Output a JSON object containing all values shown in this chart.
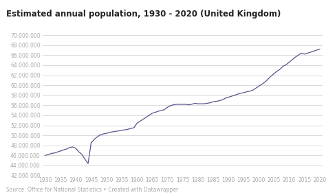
{
  "title": "Estimated annual population, 1930 - 2020 (United Kingdom)",
  "source": "Source: Office for National Statistics • Created with Datawrapper",
  "line_color": "#5c4f8a",
  "background_color": "#ffffff",
  "grid_color": "#cccccc",
  "years": [
    1930,
    1931,
    1932,
    1933,
    1934,
    1935,
    1936,
    1937,
    1938,
    1939,
    1940,
    1941,
    1942,
    1943,
    1944,
    1945,
    1946,
    1947,
    1948,
    1949,
    1950,
    1951,
    1952,
    1953,
    1954,
    1955,
    1956,
    1957,
    1958,
    1959,
    1960,
    1961,
    1962,
    1963,
    1964,
    1965,
    1966,
    1967,
    1968,
    1969,
    1970,
    1971,
    1972,
    1973,
    1974,
    1975,
    1976,
    1977,
    1978,
    1979,
    1980,
    1981,
    1982,
    1983,
    1984,
    1985,
    1986,
    1987,
    1988,
    1989,
    1990,
    1991,
    1992,
    1993,
    1994,
    1995,
    1996,
    1997,
    1998,
    1999,
    2000,
    2001,
    2002,
    2003,
    2004,
    2005,
    2006,
    2007,
    2008,
    2009,
    2010,
    2011,
    2012,
    2013,
    2014,
    2015,
    2016,
    2017,
    2018,
    2019,
    2020
  ],
  "population": [
    46000000,
    46200000,
    46400000,
    46500000,
    46700000,
    46900000,
    47100000,
    47300000,
    47600000,
    47700000,
    47400000,
    46700000,
    46200000,
    45200000,
    44400000,
    48500000,
    49200000,
    49700000,
    50100000,
    50300000,
    50400000,
    50600000,
    50700000,
    50800000,
    50900000,
    51000000,
    51100000,
    51200000,
    51400000,
    51500000,
    52400000,
    52800000,
    53200000,
    53600000,
    54000000,
    54400000,
    54600000,
    54800000,
    55000000,
    55100000,
    55600000,
    55900000,
    56100000,
    56200000,
    56200000,
    56200000,
    56200000,
    56100000,
    56200000,
    56400000,
    56300000,
    56300000,
    56300000,
    56400000,
    56500000,
    56700000,
    56800000,
    56900000,
    57100000,
    57400000,
    57600000,
    57800000,
    57990000,
    58200000,
    58400000,
    58500000,
    58700000,
    58800000,
    59000000,
    59400000,
    59800000,
    60200000,
    60600000,
    61200000,
    61800000,
    62300000,
    62800000,
    63200000,
    63800000,
    64100000,
    64600000,
    65100000,
    65600000,
    66000000,
    66400000,
    66200000,
    66400000,
    66600000,
    66800000,
    67000000,
    67200000
  ],
  "ylim": [
    42000000,
    70000000
  ],
  "yticks": [
    42000000,
    44000000,
    46000000,
    48000000,
    50000000,
    52000000,
    54000000,
    56000000,
    58000000,
    60000000,
    62000000,
    64000000,
    66000000,
    68000000,
    70000000
  ],
  "xticks": [
    1930,
    1935,
    1940,
    1945,
    1950,
    1955,
    1960,
    1965,
    1970,
    1975,
    1980,
    1985,
    1990,
    1995,
    2000,
    2005,
    2010,
    2015,
    2020
  ],
  "title_fontsize": 8.5,
  "tick_fontsize": 5.5,
  "source_fontsize": 5.5,
  "title_color": "#222222",
  "tick_color": "#aaaaaa",
  "source_color": "#aaaaaa"
}
